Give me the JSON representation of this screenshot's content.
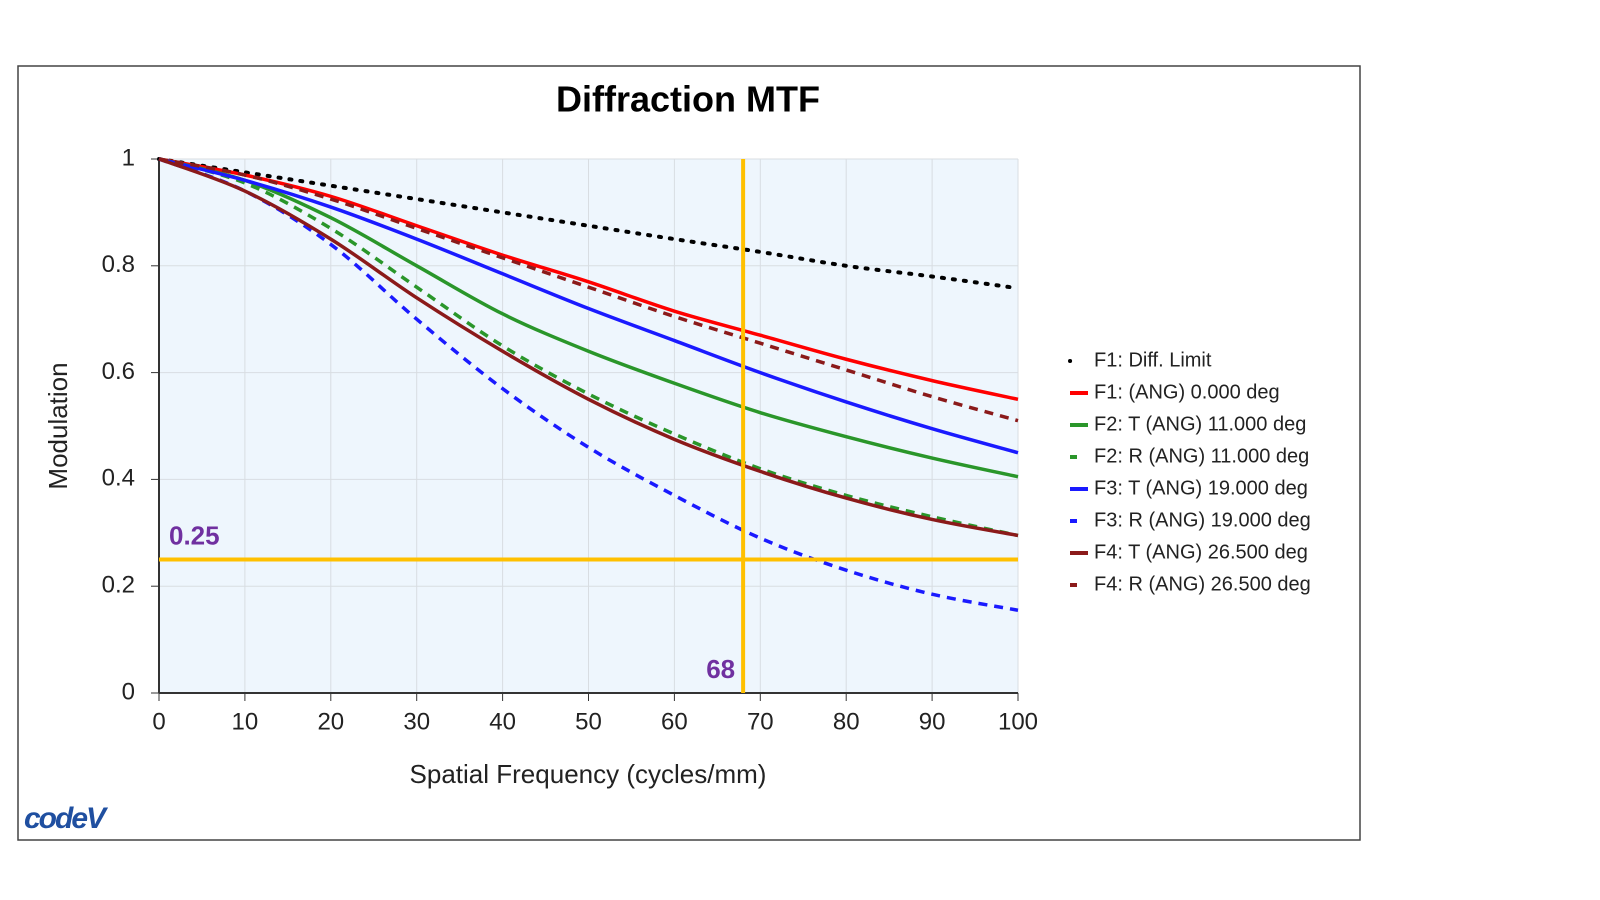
{
  "chart_data": {
    "type": "line",
    "title": "Diffraction MTF",
    "xlabel": "Spatial Frequency (cycles/mm)",
    "ylabel": "Modulation",
    "x": [
      0,
      10,
      20,
      30,
      40,
      50,
      60,
      70,
      80,
      90,
      100
    ],
    "series": [
      {
        "name": "F1: Diff. Limit",
        "color": "#000000",
        "dash": "dotted",
        "values": [
          1,
          0.975,
          0.95,
          0.925,
          0.9,
          0.875,
          0.85,
          0.826,
          0.8,
          0.78,
          0.758
        ]
      },
      {
        "name": "F1: (ANG) 0.000 deg",
        "color": "#ff0000",
        "dash": "solid",
        "values": [
          1,
          0.97,
          0.93,
          0.875,
          0.82,
          0.77,
          0.715,
          0.67,
          0.625,
          0.585,
          0.55
        ]
      },
      {
        "name": "F2: T (ANG) 11.000 deg",
        "color": "#2a962a",
        "dash": "solid",
        "values": [
          1,
          0.96,
          0.89,
          0.8,
          0.71,
          0.64,
          0.58,
          0.525,
          0.48,
          0.44,
          0.405
        ]
      },
      {
        "name": "F2: R (ANG) 11.000 deg",
        "color": "#2a962a",
        "dash": "dashed",
        "values": [
          1,
          0.955,
          0.87,
          0.76,
          0.65,
          0.56,
          0.485,
          0.42,
          0.37,
          0.33,
          0.295
        ]
      },
      {
        "name": "F3: T (ANG) 19.000 deg",
        "color": "#1a1aff",
        "dash": "solid",
        "values": [
          1,
          0.96,
          0.91,
          0.85,
          0.785,
          0.72,
          0.66,
          0.6,
          0.545,
          0.495,
          0.45
        ]
      },
      {
        "name": "F3: R (ANG) 19.000 deg",
        "color": "#1a1aff",
        "dash": "dashed",
        "values": [
          1,
          0.94,
          0.84,
          0.7,
          0.57,
          0.46,
          0.37,
          0.29,
          0.23,
          0.185,
          0.155
        ]
      },
      {
        "name": "F4: T (ANG) 26.500 deg",
        "color": "#8b1a1a",
        "dash": "solid",
        "values": [
          1,
          0.94,
          0.85,
          0.74,
          0.64,
          0.55,
          0.475,
          0.415,
          0.365,
          0.325,
          0.295
        ]
      },
      {
        "name": "F4: R (ANG) 26.500 deg",
        "color": "#8b1a1a",
        "dash": "dashed",
        "values": [
          1,
          0.97,
          0.925,
          0.87,
          0.815,
          0.76,
          0.705,
          0.655,
          0.605,
          0.555,
          0.51
        ]
      }
    ],
    "xlim": [
      0,
      100
    ],
    "xticks": [
      0,
      10,
      20,
      30,
      40,
      50,
      60,
      70,
      80,
      90,
      100
    ],
    "ylim": [
      0,
      1
    ],
    "yticks": [
      0,
      0.2,
      0.4,
      0.6,
      0.8,
      1
    ],
    "grid": true,
    "legend": "right",
    "hlines": [
      0.25
    ],
    "vlines": [
      68
    ],
    "marker_color": "#ffc000",
    "marker_label_color": "#7030a0",
    "logo": "codeV"
  }
}
